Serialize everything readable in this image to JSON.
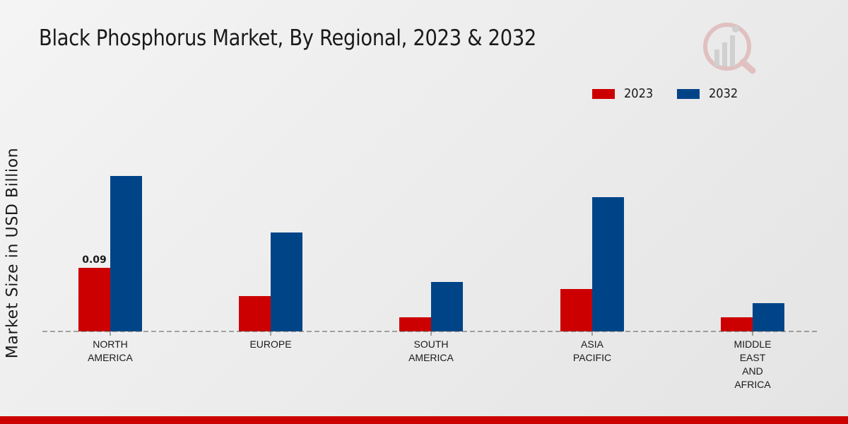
{
  "chart_data": {
    "type": "bar",
    "title": "Black Phosphorus Market, By Regional, 2023 & 2032",
    "xlabel": "",
    "ylabel": "Market Size in USD Billion",
    "categories": [
      [
        "NORTH",
        "AMERICA"
      ],
      [
        "EUROPE"
      ],
      [
        "SOUTH",
        "AMERICA"
      ],
      [
        "ASIA",
        "PACIFIC"
      ],
      [
        "MIDDLE",
        "EAST",
        "AND",
        "AFRICA"
      ]
    ],
    "series": [
      {
        "name": "2023",
        "color": "#cc0000",
        "values": [
          0.09,
          0.05,
          0.02,
          0.06,
          0.02
        ]
      },
      {
        "name": "2032",
        "color": "#004488",
        "values": [
          0.22,
          0.14,
          0.07,
          0.19,
          0.04
        ]
      }
    ],
    "data_labels": [
      {
        "series": 0,
        "index": 0,
        "text": "0.09"
      }
    ],
    "ylim": [
      0,
      0.3
    ],
    "legend_position": "top-right",
    "grid": false
  },
  "colors": {
    "accent": "#cc0000",
    "watermark": "#c03030"
  }
}
